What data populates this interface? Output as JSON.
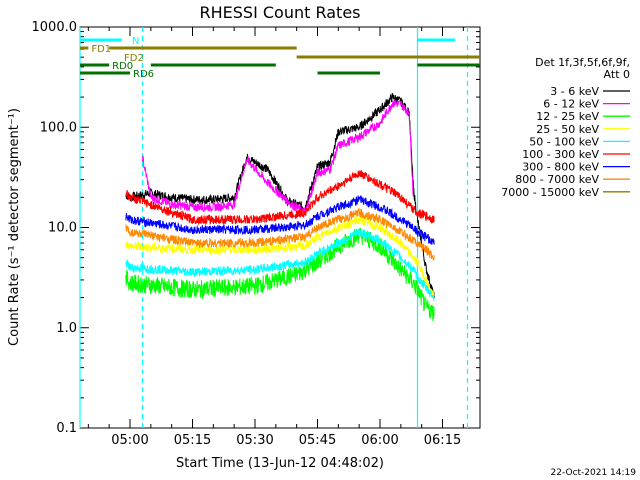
{
  "chart_data": {
    "type": "line",
    "title": "RHESSI Count Rates",
    "xlabel": "Start Time (13-Jun-12 04:48:02)",
    "ylabel": "Count Rate (s⁻¹ detector segment⁻¹)",
    "yscale": "log",
    "ylim": [
      0.1,
      1000
    ],
    "xlim": [
      "04:48",
      "06:24"
    ],
    "x_ticks": [
      "05:00",
      "05:15",
      "05:30",
      "05:45",
      "06:00",
      "06:15"
    ],
    "y_ticks": [
      "0.1",
      "1.0",
      "10.0",
      "100.0",
      "1000.0"
    ],
    "grid": false,
    "legend_position": "right",
    "legend_header": [
      "Det 1f,3f,5f,6f,9f,",
      "Att 0"
    ],
    "timestamp": "22-Oct-2021 14:19",
    "series": [
      {
        "name": "3 - 6 keV",
        "color": "#000000",
        "x": [
          "04:59",
          "05:00",
          "05:05",
          "05:10",
          "05:15",
          "05:20",
          "05:25",
          "05:28",
          "05:33",
          "05:38",
          "05:42",
          "05:45",
          "05:48",
          "05:50",
          "05:55",
          "06:00",
          "06:03",
          "06:05",
          "06:07",
          "06:08",
          "06:09",
          "06:11",
          "06:13"
        ],
        "values": [
          21,
          20,
          22,
          20,
          19,
          19,
          20,
          50,
          38,
          18,
          16,
          40,
          45,
          90,
          100,
          150,
          200,
          180,
          140,
          25,
          12,
          4,
          2
        ]
      },
      {
        "name": "6 - 12 keV",
        "color": "#ff00ff",
        "x": [
          "05:03",
          "05:05",
          "05:10",
          "05:15",
          "05:20",
          "05:25",
          "05:28",
          "05:33",
          "05:38",
          "05:42",
          "05:45",
          "05:48",
          "05:50",
          "05:55",
          "06:00",
          "06:03",
          "06:05",
          "06:07",
          "06:08"
        ],
        "values": [
          50,
          20,
          17,
          16,
          16,
          17,
          48,
          28,
          18,
          14,
          35,
          38,
          65,
          80,
          110,
          175,
          170,
          140,
          20
        ]
      },
      {
        "name": "12 - 25 keV",
        "color": "#00ff00",
        "x": [
          "04:59",
          "05:00",
          "05:15",
          "05:30",
          "05:40",
          "05:45",
          "05:50",
          "05:55",
          "06:00",
          "06:05",
          "06:08",
          "06:09",
          "06:11",
          "06:13"
        ],
        "values": [
          3.2,
          2.8,
          2.4,
          2.6,
          3.4,
          4.5,
          6.5,
          8.5,
          6.5,
          3.8,
          2.8,
          2.4,
          1.6,
          1.4
        ]
      },
      {
        "name": "25 - 50 keV",
        "color": "#ffff00",
        "x": [
          "04:59",
          "05:00",
          "05:15",
          "05:30",
          "05:42",
          "05:45",
          "05:50",
          "05:55",
          "06:00",
          "06:05",
          "06:08",
          "06:09",
          "06:11",
          "06:13"
        ],
        "values": [
          7,
          6.5,
          6,
          6,
          6.5,
          8,
          10,
          12,
          10,
          7,
          5,
          4.5,
          3,
          2
        ]
      },
      {
        "name": "50 - 100 keV",
        "color": "#00ffff",
        "x": [
          "04:59",
          "05:00",
          "05:15",
          "05:30",
          "05:42",
          "05:45",
          "05:50",
          "05:55",
          "06:00",
          "06:05",
          "06:08",
          "06:09",
          "06:11",
          "06:13"
        ],
        "values": [
          4.5,
          4,
          3.6,
          3.8,
          4.5,
          5.5,
          7,
          9,
          7.5,
          5,
          3.8,
          3.2,
          2.5,
          2
        ]
      },
      {
        "name": "100 - 300 keV",
        "color": "#ff0000",
        "x": [
          "04:59",
          "05:00",
          "05:15",
          "05:30",
          "05:42",
          "05:45",
          "05:50",
          "05:55",
          "06:00",
          "06:05",
          "06:08",
          "06:09",
          "06:11",
          "06:13"
        ],
        "values": [
          22,
          20,
          12,
          12,
          14,
          20,
          26,
          35,
          27,
          20,
          15,
          14,
          13,
          12
        ]
      },
      {
        "name": "300 - 800 keV",
        "color": "#0000ff",
        "x": [
          "04:59",
          "05:00",
          "05:15",
          "05:30",
          "05:42",
          "05:45",
          "05:50",
          "05:55",
          "06:00",
          "06:05",
          "06:08",
          "06:09",
          "06:11",
          "06:13"
        ],
        "values": [
          13,
          12,
          9.5,
          9.5,
          10.5,
          13,
          16,
          19,
          16,
          12,
          10,
          9,
          8,
          7
        ]
      },
      {
        "name": "800 - 7000 keV",
        "color": "#ff8800",
        "x": [
          "04:59",
          "05:00",
          "05:15",
          "05:30",
          "05:42",
          "05:45",
          "05:50",
          "05:55",
          "06:00",
          "06:05",
          "06:08",
          "06:09",
          "06:11",
          "06:13"
        ],
        "values": [
          10,
          9,
          7,
          7,
          8,
          10,
          12,
          14,
          12,
          9,
          7.5,
          7,
          6,
          5
        ]
      },
      {
        "name": "7000 - 15000 keV",
        "color": "#8b7d00",
        "x": [],
        "values": []
      }
    ],
    "attenuator_bars": [
      {
        "label": "N",
        "color": "#00ffff",
        "segments": [
          [
            "04:48",
            "04:58"
          ],
          [
            "06:09",
            "06:18"
          ]
        ]
      },
      {
        "label": "FD1",
        "color": "#8b7d00",
        "segments": [
          [
            "04:48",
            "04:50"
          ],
          [
            "04:55",
            "05:40"
          ]
        ]
      },
      {
        "label": "FD2",
        "color": "#8b7d00",
        "segments": [
          [
            "05:40",
            "06:24"
          ]
        ]
      },
      {
        "label": "RD0",
        "color": "#007000",
        "segments": [
          [
            "04:48",
            "04:55"
          ],
          [
            "05:05",
            "05:35"
          ],
          [
            "06:09",
            "06:24"
          ]
        ]
      },
      {
        "label": "RD6",
        "color": "#007000",
        "segments": [
          [
            "04:48",
            "05:00"
          ],
          [
            "05:45",
            "06:00"
          ]
        ]
      }
    ],
    "vertical_markers": [
      {
        "time": "04:48",
        "style": "solid",
        "color": "#00ffff"
      },
      {
        "time": "05:03",
        "style": "dashed",
        "color": "#00ffff"
      },
      {
        "time": "06:09",
        "style": "solid",
        "color": "#00ffff"
      },
      {
        "time": "06:21",
        "style": "dashed",
        "color": "#00ffff"
      }
    ]
  }
}
